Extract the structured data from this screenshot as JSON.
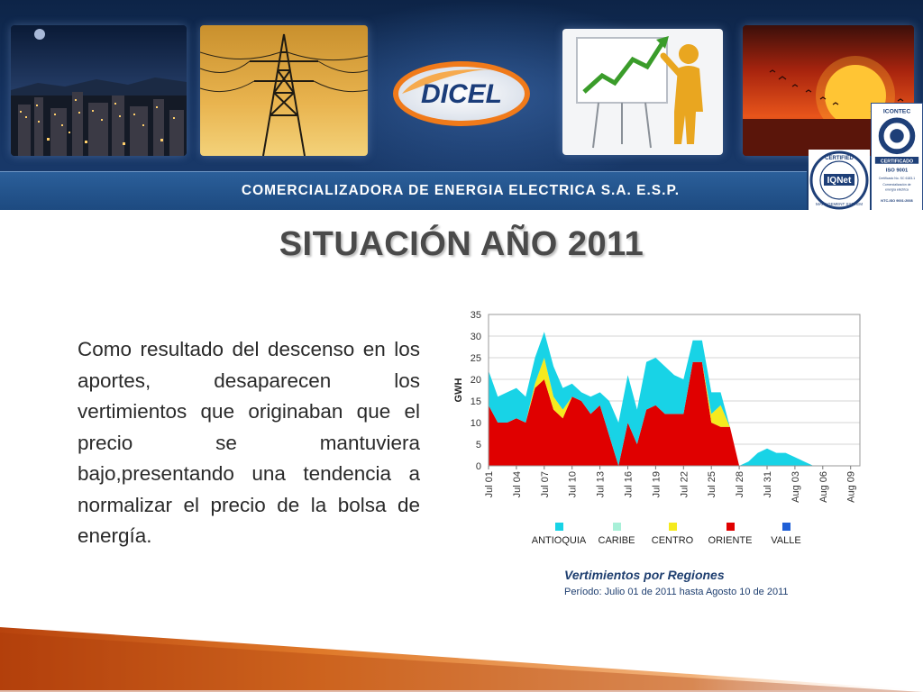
{
  "header": {
    "logo_text": "DICEL",
    "tagline": "COMERCIALIZADORA DE ENERGIA ELECTRICA S.A. E.S.P.",
    "cert_iqnet": {
      "ring_top": "CERTIFIED",
      "brand": "IQNet",
      "ring_bottom": "MANAGEMENT SYSTEM"
    },
    "cert_icontec": {
      "brand": "ICONTEC",
      "badge": "CERTIFICADO",
      "standard": "ISO 9001",
      "cert_no": "Certificado No. SC 6183-1",
      "line1": "Comercialización de",
      "line2": "energía eléctrica",
      "footer": "NTC-ISO 9001:2008"
    }
  },
  "title": "SITUACIÓN AÑO 2011",
  "body_text": "Como resultado del descenso en los aportes, desaparecen los vertimientos que originaban que el precio se mantuviera bajo,presentando una tendencia a normalizar el precio de la bolsa de energía.",
  "caption": {
    "title": "Vertimientos por Regiones",
    "subtitle": "Período:  Julio 01 de 2011  hasta Agosto 10 de 2011"
  },
  "colors": {
    "antioquia": "#18d3e6",
    "caribe": "#a8f0d8",
    "centro": "#f5ea1e",
    "oriente": "#e00000",
    "valle": "#1f5fd6",
    "banner": "#15325f",
    "title": "#4a4a4a"
  },
  "chart_data": {
    "type": "area",
    "stacked": true,
    "ylabel": "GWH",
    "xlabel": "",
    "ylim": [
      0,
      35
    ],
    "yticks": [
      0,
      5,
      10,
      15,
      20,
      25,
      30,
      35
    ],
    "x_tick_labels": [
      "Jul 01",
      "Jul 04",
      "Jul 07",
      "Jul 10",
      "Jul 13",
      "Jul 16",
      "Jul 19",
      "Jul 22",
      "Jul 25",
      "Jul 28",
      "Jul 31",
      "Aug 03",
      "Aug 06",
      "Aug 09"
    ],
    "x": [
      "Jul 01",
      "Jul 02",
      "Jul 03",
      "Jul 04",
      "Jul 05",
      "Jul 06",
      "Jul 07",
      "Jul 08",
      "Jul 09",
      "Jul 10",
      "Jul 11",
      "Jul 12",
      "Jul 13",
      "Jul 14",
      "Jul 15",
      "Jul 16",
      "Jul 17",
      "Jul 18",
      "Jul 19",
      "Jul 20",
      "Jul 21",
      "Jul 22",
      "Jul 23",
      "Jul 24",
      "Jul 25",
      "Jul 26",
      "Jul 27",
      "Jul 28",
      "Jul 29",
      "Jul 30",
      "Jul 31",
      "Aug 01",
      "Aug 02",
      "Aug 03",
      "Aug 04",
      "Aug 05",
      "Aug 06",
      "Aug 07",
      "Aug 08",
      "Aug 09",
      "Aug 10"
    ],
    "legend_position": "bottom",
    "grid": true,
    "series": [
      {
        "name": "ORIENTE",
        "color": "#e00000",
        "values": [
          14,
          10,
          10,
          11,
          10,
          18,
          20,
          13,
          11,
          16,
          15,
          12,
          14,
          7,
          0,
          10,
          5,
          13,
          14,
          12,
          12,
          12,
          24,
          24,
          10,
          9,
          9,
          0,
          0,
          0,
          0,
          0,
          0,
          0,
          0,
          0,
          0,
          0,
          0,
          0,
          0
        ]
      },
      {
        "name": "CENTRO",
        "color": "#f5ea1e",
        "values": [
          0,
          0,
          0,
          0,
          0,
          1,
          5,
          3,
          2,
          0,
          0,
          0,
          0,
          0,
          0,
          0,
          0,
          0,
          0,
          0,
          0,
          0,
          0,
          0,
          2,
          5,
          0,
          0,
          0,
          0,
          0,
          0,
          0,
          0,
          0,
          0,
          0,
          0,
          0,
          0,
          0
        ]
      },
      {
        "name": "CARIBE",
        "color": "#a8f0d8",
        "values": [
          0,
          0,
          0,
          0,
          0,
          0,
          0,
          0,
          0,
          0,
          0,
          0,
          0,
          0,
          0,
          0,
          0,
          0,
          0,
          0,
          0,
          0,
          0,
          0,
          0,
          0,
          0,
          0,
          0,
          0,
          0,
          0,
          0,
          0,
          0,
          0,
          0,
          0,
          0,
          0,
          0
        ]
      },
      {
        "name": "VALLE",
        "color": "#1f5fd6",
        "values": [
          0,
          0,
          0,
          0,
          0,
          0,
          0,
          0,
          0,
          0,
          0,
          0,
          0,
          0,
          0,
          0,
          0,
          0,
          0,
          0,
          0,
          0,
          0,
          0,
          0,
          0,
          0,
          0,
          0,
          0,
          0,
          0,
          0,
          0,
          0,
          0,
          0,
          0,
          0,
          0,
          0
        ]
      },
      {
        "name": "ANTIOQUIA",
        "color": "#18d3e6",
        "values": [
          8,
          6,
          7,
          7,
          6,
          6,
          6,
          7,
          5,
          3,
          2,
          4,
          3,
          8,
          10,
          11,
          8,
          11,
          11,
          11,
          9,
          8,
          5,
          5,
          5,
          3,
          0,
          0,
          1,
          3,
          4,
          3,
          3,
          2,
          1,
          0,
          0,
          0,
          0,
          0,
          0
        ]
      }
    ],
    "legend": [
      "ANTIOQUIA",
      "CARIBE",
      "CENTRO",
      "ORIENTE",
      "VALLE"
    ]
  }
}
